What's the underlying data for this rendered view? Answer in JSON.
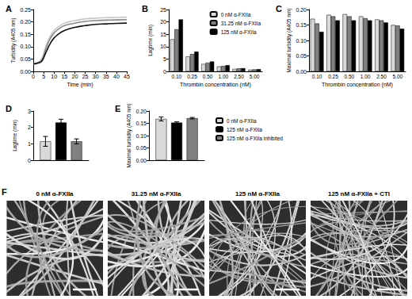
{
  "chart_data": [
    {
      "title": "A",
      "type": "line",
      "x_label": "Time (min)",
      "y_label": "Turbidity (A405 nm)",
      "grid": false,
      "x": [
        0,
        2,
        4,
        6,
        8,
        10,
        12,
        15,
        20,
        25,
        30,
        35,
        40,
        45
      ],
      "xlim": [
        0,
        45
      ],
      "xticks": [
        0,
        5,
        10,
        15,
        20,
        25,
        30,
        35,
        40,
        45
      ],
      "ylim": [
        0,
        0.25
      ],
      "yticks": [
        {
          "value": 0,
          "label": "0.00"
        },
        {
          "value": 0.05,
          "label": "0.05"
        },
        {
          "value": 0.1,
          "label": "0.10"
        },
        {
          "value": 0.15,
          "label": "0.15"
        },
        {
          "value": 0.2,
          "label": "0.20"
        },
        {
          "value": 0.25,
          "label": "0.25"
        }
      ],
      "series": [
        {
          "color": "#c8c8c8",
          "values": [
            0.03,
            0.035,
            0.05,
            0.1,
            0.14,
            0.165,
            0.18,
            0.195,
            0.205,
            0.212,
            0.215,
            0.217,
            0.218,
            0.219
          ]
        },
        {
          "color": "#888888",
          "values": [
            0.03,
            0.035,
            0.045,
            0.09,
            0.13,
            0.155,
            0.17,
            0.185,
            0.195,
            0.202,
            0.205,
            0.207,
            0.208,
            0.209
          ]
        },
        {
          "color": "#111111",
          "values": [
            0.03,
            0.033,
            0.04,
            0.075,
            0.11,
            0.135,
            0.15,
            0.165,
            0.178,
            0.185,
            0.19,
            0.192,
            0.194,
            0.195
          ]
        }
      ]
    },
    {
      "title": "B",
      "type": "bar",
      "x_label": "Thrombin concentration (nM)",
      "y_label": "Lagtime (min)",
      "grid": false,
      "legend": "upper right",
      "categories": [
        "0.10",
        "0.25",
        "0.50",
        "1.00",
        "2.50",
        "5.00"
      ],
      "ylim": [
        0,
        25
      ],
      "yticks": [
        0,
        5,
        10,
        15,
        20,
        25
      ],
      "series": [
        {
          "name": "0 nM α-FXIIa",
          "color": "#d9d9d9",
          "values": [
            13,
            6,
            3,
            2,
            1,
            0.7
          ]
        },
        {
          "name": "31.25 nM α-FXIIa",
          "color": "#808080",
          "values": [
            17,
            7,
            3.5,
            2.2,
            1.2,
            0.8
          ]
        },
        {
          "name": "125 nM α-FXIIa",
          "color": "#000000",
          "values": [
            21,
            8,
            4,
            2.5,
            1.3,
            0.9
          ]
        }
      ]
    },
    {
      "title": "C",
      "type": "bar",
      "x_label": "Thrombin concentration (nM)",
      "y_label": "Maximal turbidity (A405 nm)",
      "grid": false,
      "categories": [
        "0.10",
        "0.25",
        "0.50",
        "1.00",
        "2.50",
        "5.00"
      ],
      "ylim": [
        0,
        0.2
      ],
      "yticks": [
        {
          "value": 0,
          "label": "0.00"
        },
        {
          "value": 0.05,
          "label": "0.05"
        },
        {
          "value": 0.1,
          "label": "0.10"
        },
        {
          "value": 0.15,
          "label": "0.15"
        },
        {
          "value": 0.2,
          "label": "0.20"
        }
      ],
      "series": [
        {
          "color": "#d9d9d9",
          "values": [
            0.17,
            0.183,
            0.185,
            0.178,
            0.168,
            0.15
          ]
        },
        {
          "color": "#808080",
          "values": [
            0.155,
            0.178,
            0.178,
            0.172,
            0.165,
            0.148
          ]
        },
        {
          "color": "#000000",
          "values": [
            0.128,
            0.165,
            0.165,
            0.165,
            0.158,
            0.138
          ]
        }
      ]
    },
    {
      "title": "D",
      "type": "bar",
      "y_label": "Lagtime (min)",
      "grid": false,
      "categories": [
        null
      ],
      "ylim": [
        0,
        3
      ],
      "yticks": [
        0,
        1,
        2,
        3
      ],
      "series": [
        {
          "color": "#d9d9d9",
          "values": [
            1.15
          ],
          "errors": [
            0.3
          ]
        },
        {
          "color": "#000000",
          "values": [
            2.3
          ],
          "errors": [
            0.2
          ]
        },
        {
          "color": "#808080",
          "values": [
            1.15
          ],
          "errors": [
            0.15
          ]
        }
      ]
    },
    {
      "title": "E",
      "type": "bar",
      "y_label": "Maximal turbidity (A405 nm)",
      "grid": false,
      "legend": "right",
      "categories": [
        null
      ],
      "ylim": [
        0,
        0.2
      ],
      "yticks": [
        {
          "value": 0,
          "label": "0.00"
        },
        {
          "value": 0.05,
          "label": "0.05"
        },
        {
          "value": 0.1,
          "label": "0.10"
        },
        {
          "value": 0.15,
          "label": "0.15"
        },
        {
          "value": 0.2,
          "label": "0.20"
        }
      ],
      "series": [
        {
          "name": "0 nM α-FXIIa",
          "color": "#d9d9d9",
          "values": [
            0.168
          ],
          "errors": [
            0.008
          ]
        },
        {
          "name": "125 nM α-FXIIa",
          "color": "#000000",
          "values": [
            0.153
          ],
          "errors": [
            0.003
          ]
        },
        {
          "name": "125 nM α-FXIIa inhibited",
          "color": "#808080",
          "values": [
            0.171
          ],
          "errors": [
            0.003
          ]
        }
      ]
    }
  ],
  "images": {
    "title": "F",
    "labels": [
      "0 nM α-FXIIa",
      "31.25 nM α-FXIIa",
      "125 nM α-FXIIa",
      "125 nM α-FXIIa + CTI"
    ]
  }
}
